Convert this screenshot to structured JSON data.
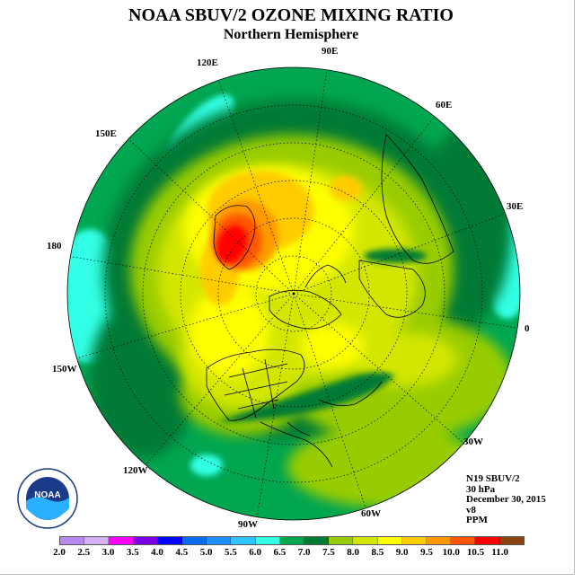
{
  "title": "NOAA SBUV/2 OZONE MIXING RATIO",
  "subtitle": "Northern Hemisphere",
  "longitude_labels": {
    "lon_90e": "90E",
    "lon_60e": "60E",
    "lon_120e": "120E",
    "lon_150e": "150E",
    "lon_30e": "30E",
    "lon_180": "180",
    "lon_0": "0",
    "lon_150w": "150W",
    "lon_30w": "30W",
    "lon_120w": "120W",
    "lon_60w": "60W",
    "lon_90w": "90W"
  },
  "info": {
    "satellite": "N19 SBUV/2",
    "level": "30 hPa",
    "date": "December 30, 2015",
    "version": "v8",
    "units": "PPM"
  },
  "colorbar": {
    "ticks": [
      "2.0",
      "2.5",
      "3.0",
      "3.5",
      "4.0",
      "4.5",
      "5.0",
      "5.5",
      "6.0",
      "6.5",
      "7.0",
      "7.5",
      "8.0",
      "8.5",
      "9.0",
      "9.5",
      "10.0",
      "10.5",
      "11.0"
    ],
    "colors": [
      "#b68af0",
      "#d7b2f2",
      "#ff00ff",
      "#7a00e6",
      "#0000ff",
      "#0a6cf0",
      "#1e90ff",
      "#2dc4ff",
      "#33ffe6",
      "#00a650",
      "#007a35",
      "#99cc00",
      "#d2e600",
      "#ffff00",
      "#ffcc00",
      "#ff9900",
      "#ff5500",
      "#ff0000",
      "#8b4513"
    ]
  },
  "logo": {
    "text": "NOAA",
    "ring_text": "NATIONAL OCEANIC AND ATMOSPHERIC ADMINISTRATION · U.S. DEPARTMENT OF COMMERCE"
  }
}
